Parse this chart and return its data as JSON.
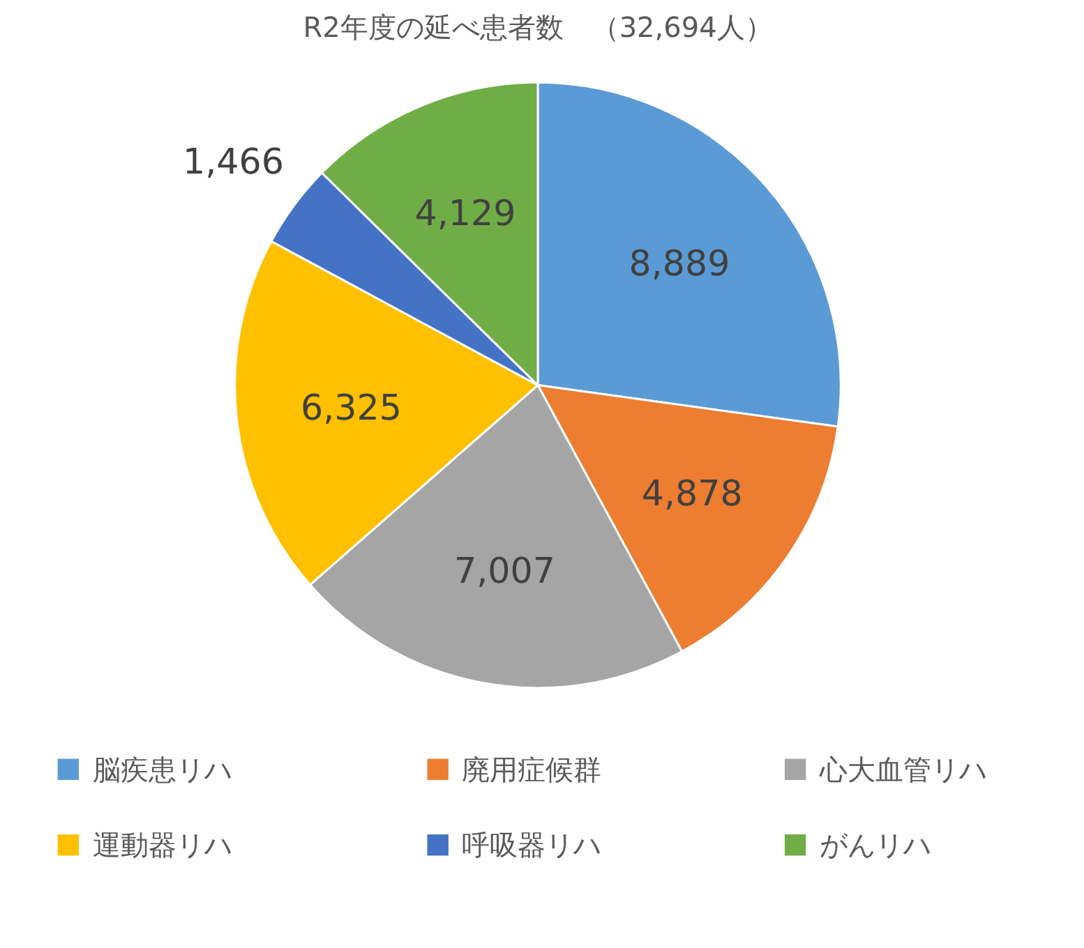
{
  "chart_data": {
    "type": "pie",
    "title": "R2年度の延べ患者数　（32,694人）",
    "categories": [
      "脳疾患リハ",
      "廃用症候群",
      "心大血管リハ",
      "運動器リハ",
      "呼吸器リハ",
      "がんリハ"
    ],
    "values": [
      8889,
      4878,
      7007,
      6325,
      1466,
      4129
    ],
    "colors": [
      "#5b9bd5",
      "#ed7d31",
      "#a5a5a5",
      "#ffc000",
      "#4472c4",
      "#70ad47"
    ],
    "value_labels": [
      "8,889",
      "4,878",
      "7,007",
      "6,325",
      "1,466",
      "4,129"
    ],
    "legend": "bottom"
  }
}
